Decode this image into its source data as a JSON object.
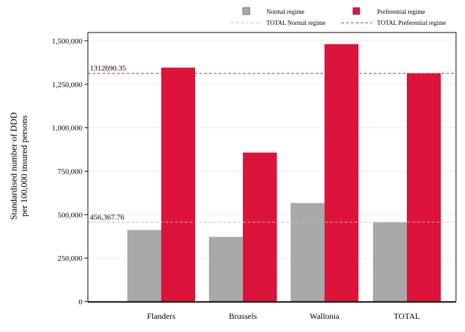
{
  "chart_data": {
    "type": "bar",
    "categories": [
      "Flanders",
      "Brussels",
      "Wallonia",
      "TOTAL"
    ],
    "series": [
      {
        "name": "Normal regime",
        "color": "#a9a9a9",
        "values": [
          412000,
          372000,
          567000,
          456368
        ]
      },
      {
        "name": "Preferential regime",
        "color": "#dc143c",
        "values": [
          1346000,
          857000,
          1481000,
          1312690
        ]
      }
    ],
    "reference_lines": [
      {
        "name": "TOTAL Normal regime",
        "value": 456367.76,
        "label": "456,367.76",
        "color": "#c0c0c0",
        "style": "dashed"
      },
      {
        "name": "TOTAL Preferential regime",
        "value": 1312690.35,
        "label": "1312690.35",
        "color": "#dc143c",
        "style": "dashed"
      }
    ],
    "ylabel": [
      "Standardised number of DDD",
      "per 100,000 insured persons"
    ],
    "ylim": [
      0,
      1500000
    ],
    "yticks": [
      0,
      250000,
      500000,
      750000,
      1000000,
      1250000,
      1500000
    ],
    "ytick_labels": [
      "0",
      "250,000",
      "500,000",
      "750,000",
      "1,000,000",
      "1,250,000",
      "1,500,000"
    ],
    "grid": true,
    "legend_position": "top-right"
  }
}
